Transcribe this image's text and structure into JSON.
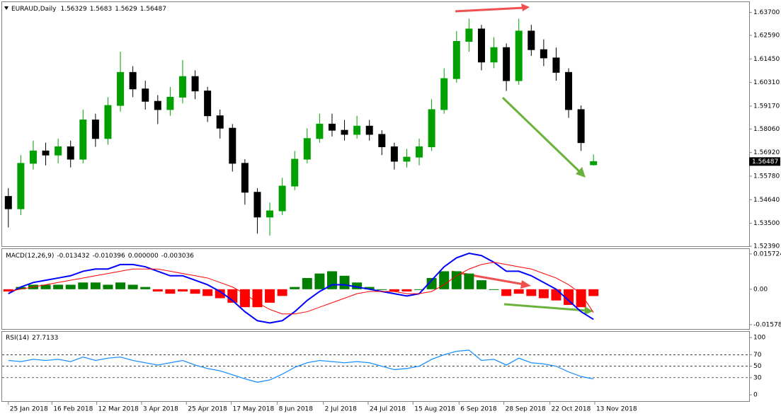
{
  "chart_data": [
    {
      "type": "candlestick",
      "title": "EURAUD,Daily",
      "open": [
        1.548,
        1.542,
        1.564,
        1.57,
        1.568,
        1.572,
        1.566,
        1.585,
        1.576,
        1.592,
        1.608,
        1.6,
        1.594,
        1.59,
        1.596,
        1.606,
        1.599,
        1.587,
        1.581,
        1.564,
        1.55,
        1.538,
        1.541,
        1.553,
        1.566,
        1.576,
        1.583,
        1.58,
        1.578,
        1.582,
        1.578,
        1.572,
        1.565,
        1.567,
        1.572,
        1.59,
        1.605,
        1.623,
        1.629,
        1.613,
        1.62,
        1.604,
        1.628,
        1.619,
        1.615,
        1.608,
        1.59,
        1.56329
      ],
      "high": [
        1.552,
        1.568,
        1.575,
        1.574,
        1.576,
        1.575,
        1.59,
        1.588,
        1.596,
        1.618,
        1.611,
        1.604,
        1.597,
        1.601,
        1.614,
        1.609,
        1.601,
        1.59,
        1.583,
        1.566,
        1.552,
        1.545,
        1.557,
        1.57,
        1.581,
        1.588,
        1.588,
        1.585,
        1.587,
        1.585,
        1.58,
        1.574,
        1.571,
        1.576,
        1.595,
        1.61,
        1.628,
        1.634,
        1.631,
        1.625,
        1.622,
        1.634,
        1.631,
        1.624,
        1.62,
        1.61,
        1.592,
        1.5683
      ],
      "low": [
        1.533,
        1.539,
        1.561,
        1.563,
        1.564,
        1.562,
        1.564,
        1.572,
        1.573,
        1.589,
        1.596,
        1.59,
        1.583,
        1.587,
        1.593,
        1.595,
        1.584,
        1.576,
        1.56,
        1.544,
        1.53,
        1.529,
        1.539,
        1.551,
        1.564,
        1.574,
        1.577,
        1.575,
        1.576,
        1.575,
        1.568,
        1.561,
        1.562,
        1.563,
        1.57,
        1.588,
        1.603,
        1.618,
        1.609,
        1.61,
        1.599,
        1.602,
        1.616,
        1.611,
        1.604,
        1.586,
        1.57,
        1.5629
      ],
      "close": [
        1.542,
        1.564,
        1.57,
        1.568,
        1.572,
        1.566,
        1.585,
        1.576,
        1.592,
        1.608,
        1.6,
        1.594,
        1.59,
        1.596,
        1.606,
        1.599,
        1.587,
        1.581,
        1.564,
        1.55,
        1.538,
        1.541,
        1.553,
        1.566,
        1.576,
        1.583,
        1.58,
        1.578,
        1.582,
        1.578,
        1.572,
        1.565,
        1.567,
        1.572,
        1.59,
        1.605,
        1.623,
        1.629,
        1.613,
        1.62,
        1.604,
        1.628,
        1.619,
        1.615,
        1.608,
        1.59,
        1.574,
        1.56487
      ],
      "colors": {
        "up": "#00a000",
        "down": "#000000"
      },
      "ylim": [
        1.5239,
        1.642
      ],
      "yticks": [
        {
          "value": 1.637,
          "label": "1.63700"
        },
        {
          "value": 1.6259,
          "label": "1.62590"
        },
        {
          "value": 1.6145,
          "label": "1.61450"
        },
        {
          "value": 1.6031,
          "label": "1.60310"
        },
        {
          "value": 1.5917,
          "label": "1.59170"
        },
        {
          "value": 1.5806,
          "label": "1.58060"
        },
        {
          "value": 1.5692,
          "label": "1.56920"
        },
        {
          "value": 1.5578,
          "label": "1.55780"
        },
        {
          "value": 1.5464,
          "label": "1.54640"
        },
        {
          "value": 1.535,
          "label": "1.53500"
        },
        {
          "value": 1.5239,
          "label": "1.52390"
        }
      ],
      "xlim": [
        -0.5,
        59.5
      ],
      "xticks": [
        {
          "value": 0,
          "label": "25 Jan 2018"
        },
        {
          "value": 3.5,
          "label": "16 Feb 2018"
        },
        {
          "value": 7.1,
          "label": "12 Mar 2018"
        },
        {
          "value": 10.7,
          "label": "3 Apr 2018"
        },
        {
          "value": 14.3,
          "label": "25 Apr 2018"
        },
        {
          "value": 17.9,
          "label": "17 May 2018"
        },
        {
          "value": 21.6,
          "label": "8 Jun 2018"
        },
        {
          "value": 25.3,
          "label": "2 Jul 2018"
        },
        {
          "value": 28.9,
          "label": "24 Jul 2018"
        },
        {
          "value": 32.5,
          "label": "15 Aug 2018"
        },
        {
          "value": 36.2,
          "label": "6 Sep 2018"
        },
        {
          "value": 39.8,
          "label": "28 Sep 2018"
        },
        {
          "value": 43.5,
          "label": "22 Oct 2018"
        },
        {
          "value": 47.1,
          "label": "13 Nov 2018"
        }
      ]
    },
    {
      "type": "macd",
      "title": "MACD(12,26,9)",
      "series": [
        {
          "color": "#0000ff",
          "values": [
            -0.002,
            0.001,
            0.003,
            0.004,
            0.005,
            0.006,
            0.008,
            0.009,
            0.009,
            0.011,
            0.011,
            0.01,
            0.008,
            0.006,
            0.006,
            0.004,
            0.002,
            -0.001,
            -0.005,
            -0.01,
            -0.014,
            -0.015,
            -0.014,
            -0.01,
            -0.005,
            -0.001,
            0.002,
            0.002,
            0.001,
            0.0,
            -0.001,
            -0.002,
            -0.003,
            -0.002,
            0.004,
            0.01,
            0.014,
            0.016,
            0.015,
            0.012,
            0.008,
            0.008,
            0.006,
            0.003,
            0.0,
            -0.005,
            -0.01,
            -0.013432
          ]
        },
        {
          "color": "#ff0000",
          "values": [
            -0.001,
            0.0,
            0.001,
            0.002,
            0.003,
            0.004,
            0.005,
            0.006,
            0.007,
            0.008,
            0.009,
            0.009,
            0.009,
            0.008,
            0.007,
            0.006,
            0.005,
            0.003,
            0.001,
            -0.002,
            -0.006,
            -0.009,
            -0.011,
            -0.011,
            -0.01,
            -0.008,
            -0.006,
            -0.004,
            -0.002,
            -0.001,
            -0.001,
            -0.001,
            -0.002,
            -0.002,
            -0.001,
            0.002,
            0.006,
            0.009,
            0.011,
            0.012,
            0.011,
            0.01,
            0.009,
            0.007,
            0.005,
            0.002,
            -0.002,
            -0.010396
          ]
        }
      ],
      "header_value": {
        "value": 0,
        "label": "0.000000"
      },
      "histogram": {
        "values": [
          -0.001,
          0.001,
          0.002,
          0.002,
          0.002,
          0.002,
          0.003,
          0.003,
          0.002,
          0.003,
          0.002,
          0.001,
          -0.001,
          -0.002,
          -0.001,
          -0.002,
          -0.003,
          -0.004,
          -0.006,
          -0.008,
          -0.008,
          -0.006,
          -0.003,
          0.001,
          0.005,
          0.007,
          0.008,
          0.006,
          0.003,
          0.001,
          0.0,
          -0.001,
          -0.001,
          0.0,
          0.005,
          0.008,
          0.008,
          0.007,
          0.004,
          0.0,
          -0.003,
          -0.002,
          -0.003,
          -0.004,
          -0.005,
          -0.007,
          -0.008,
          -0.003036
        ],
        "colors": {
          "positive": "#008000",
          "negative": "#ff0000"
        }
      },
      "ylim": [
        -0.0177,
        0.0179
      ],
      "yticks": [
        0.015724,
        {
          "value": 0,
          "label": "0.00"
        },
        -0.015782
      ]
    },
    {
      "type": "line",
      "title": "RSI(14)",
      "values": [
        60,
        58,
        62,
        60,
        62,
        58,
        66,
        60,
        64,
        66,
        60,
        56,
        52,
        56,
        60,
        52,
        46,
        42,
        35,
        28,
        22,
        26,
        36,
        48,
        56,
        60,
        58,
        56,
        58,
        56,
        50,
        44,
        46,
        50,
        62,
        70,
        76,
        78,
        60,
        62,
        52,
        64,
        56,
        54,
        50,
        40,
        32,
        27.7133
      ],
      "color": "#1e90ff",
      "levels": [
        70,
        50,
        30
      ],
      "ylim": [
        -11,
        110
      ],
      "yticks": [
        100,
        70,
        50,
        30,
        0
      ]
    }
  ]
}
